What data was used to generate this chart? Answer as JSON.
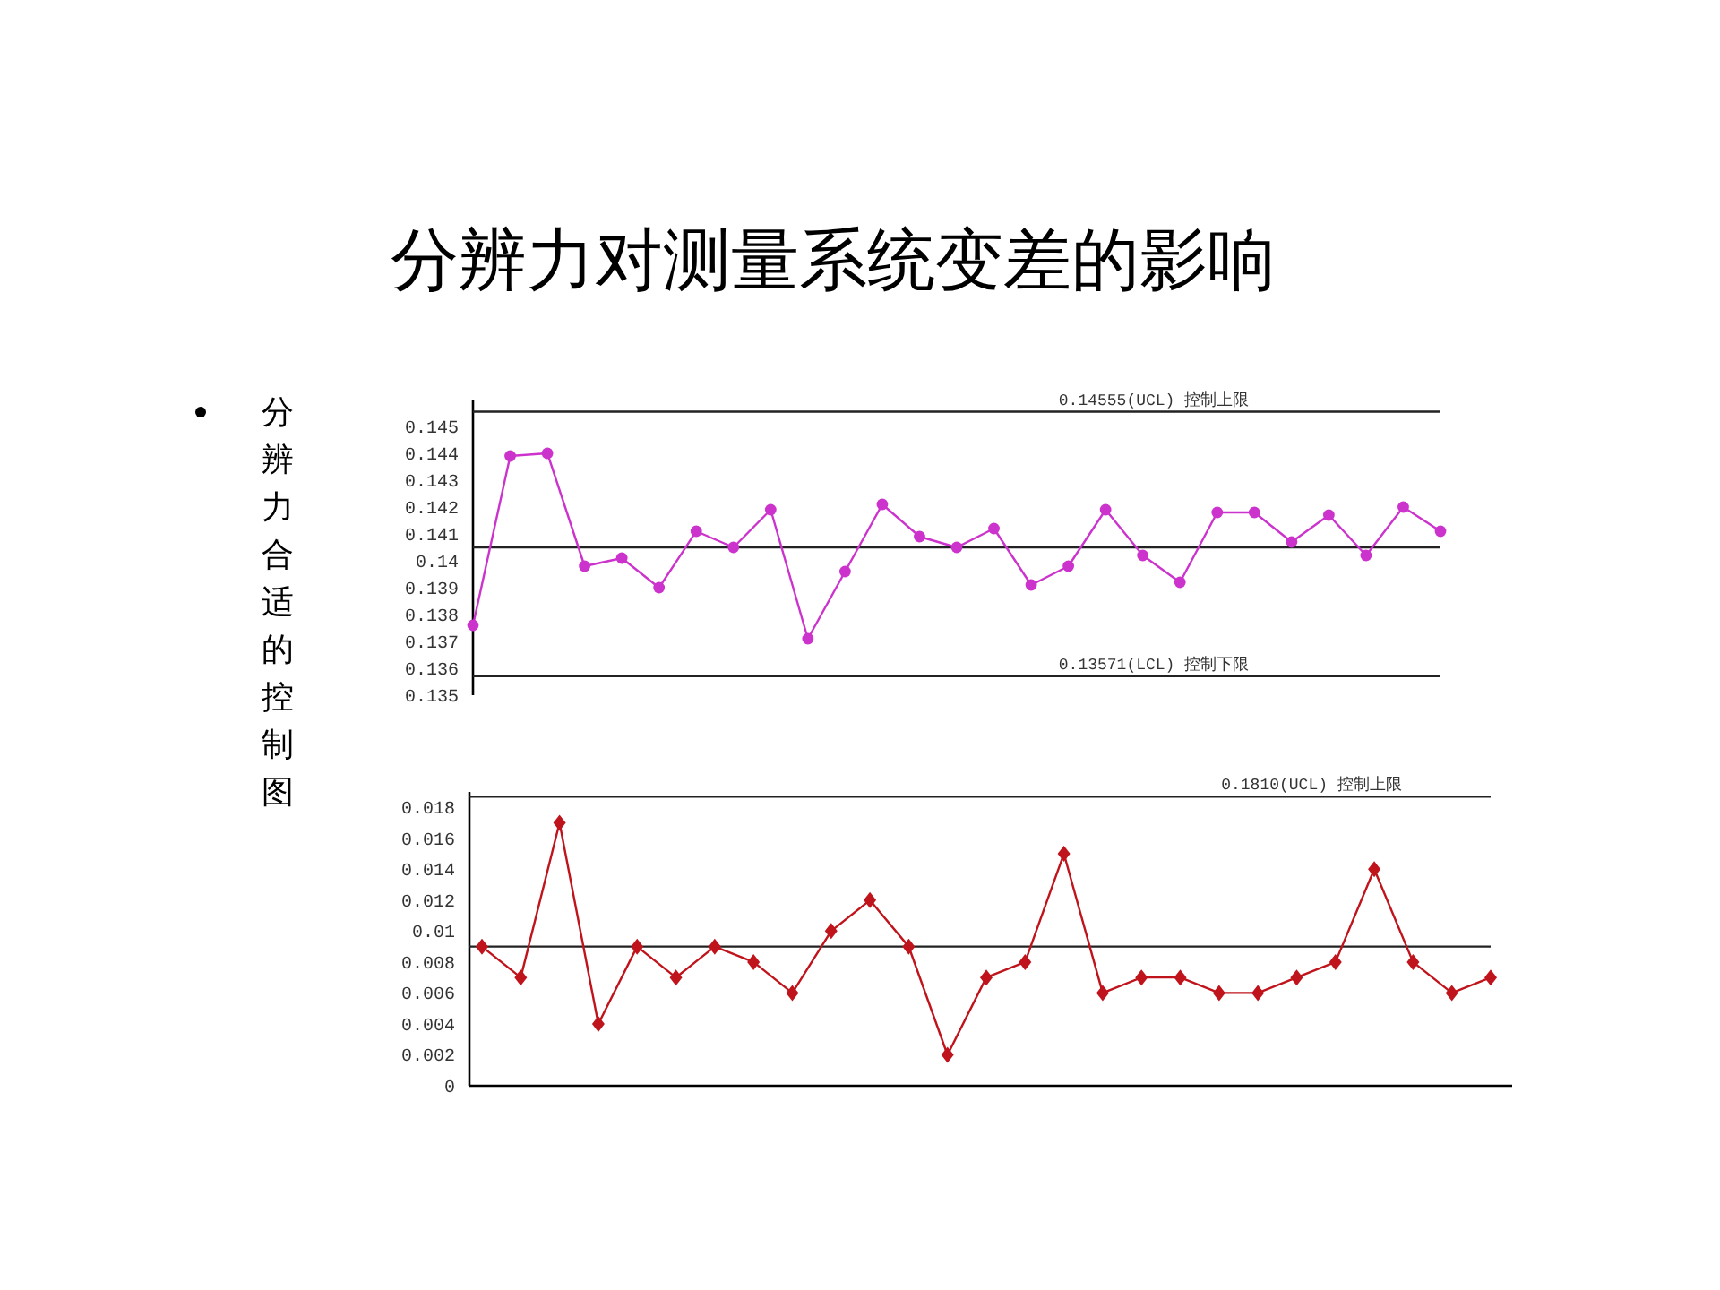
{
  "chart_data": [
    {
      "type": "line",
      "title": "分辨力对测量系统变差的影响",
      "subtitle": "分辨力合适的控制图",
      "categories": [
        null,
        null,
        null,
        null,
        null,
        null,
        null,
        null,
        null,
        null,
        null,
        null,
        null,
        null,
        null,
        null,
        null,
        null,
        null,
        null,
        null,
        null,
        null,
        null,
        null,
        null,
        null
      ],
      "series": [
        {
          "color": "#cc33cc",
          "values": [
            0.1376,
            0.1439,
            0.144,
            0.1398,
            0.1401,
            0.139,
            0.1411,
            0.1405,
            0.1419,
            0.1371,
            0.1396,
            0.1421,
            0.1409,
            0.1405,
            0.1412,
            0.1391,
            0.1398,
            0.1419,
            0.1402,
            0.1392,
            0.1418,
            0.1418,
            0.1407,
            0.1417,
            0.1402,
            0.142,
            0.1411
          ]
        }
      ],
      "ylim": [
        0.135,
        0.146
      ],
      "yticks": [
        0.135,
        0.136,
        0.137,
        0.138,
        0.139,
        0.14,
        0.141,
        0.142,
        0.143,
        0.144,
        0.145
      ],
      "ref_lines": [
        {
          "axis": "y",
          "value": 0.14555,
          "label": "0.14555(UCL) 控制上限"
        },
        {
          "axis": "y",
          "value": 0.1405
        },
        {
          "axis": "y",
          "value": 0.13571,
          "label": "0.13571(LCL) 控制下限"
        }
      ],
      "marker": "circle",
      "grid": false,
      "tick_labels": "y"
    },
    {
      "type": "line",
      "categories": [
        null,
        null,
        null,
        null,
        null,
        null,
        null,
        null,
        null,
        null,
        null,
        null,
        null,
        null,
        null,
        null,
        null,
        null,
        null,
        null,
        null,
        null,
        null,
        null,
        null,
        null,
        null
      ],
      "series": [
        {
          "color": "#c0141c",
          "values": [
            0.009,
            0.007,
            0.017,
            0.004,
            0.009,
            0.007,
            0.009,
            0.008,
            0.006,
            0.01,
            0.012,
            0.009,
            0.002,
            0.007,
            0.008,
            0.015,
            0.006,
            0.007,
            0.007,
            0.006,
            0.006,
            0.007,
            0.008,
            0.014,
            0.008,
            0.006,
            0.007
          ]
        }
      ],
      "ylim": [
        0,
        0.019
      ],
      "yticks": [
        0,
        0.002,
        0.004,
        0.006,
        0.008,
        {
          "value": 0.01,
          "label": "0.01"
        },
        0.012,
        0.014,
        0.016,
        0.018
      ],
      "ref_lines": [
        {
          "axis": "y",
          "value": 0.0187,
          "label": "0.1810(UCL) 控制上限"
        },
        {
          "axis": "y",
          "value": 0.009
        }
      ],
      "marker": "diamond",
      "grid": false,
      "tick_labels": "y"
    }
  ]
}
